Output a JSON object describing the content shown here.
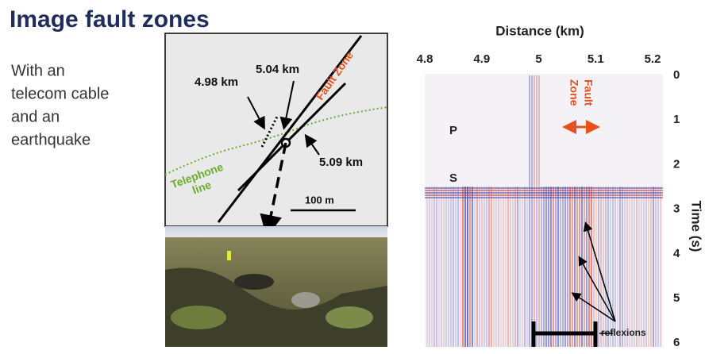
{
  "header": {
    "title": "Image fault zones"
  },
  "body_text": {
    "lines": [
      "With an",
      "telecom cable",
      "and an",
      "earthquake"
    ]
  },
  "map": {
    "labels": {
      "km_498": "4.98 km",
      "km_504": "5.04 km",
      "km_509": "5.09 km",
      "fault_zone": "Fault Zone",
      "telephone_line": [
        "Telephone",
        "line"
      ],
      "scale": "100 m"
    }
  },
  "seismic": {
    "x_axis_label": "Distance (km)",
    "y_axis_label": "Time (s)",
    "xticks": [
      {
        "value": 4.8,
        "label": "4.8"
      },
      {
        "value": 4.9,
        "label": "4.9"
      },
      5,
      5.1,
      5.2
    ],
    "yticks": [
      0,
      1,
      2,
      3,
      4,
      5,
      6
    ],
    "labels": {
      "p_wave": "P",
      "s_wave": "S",
      "fault_zone": [
        "Fault",
        "Zone"
      ],
      "reflexions": "reflexions"
    }
  }
}
